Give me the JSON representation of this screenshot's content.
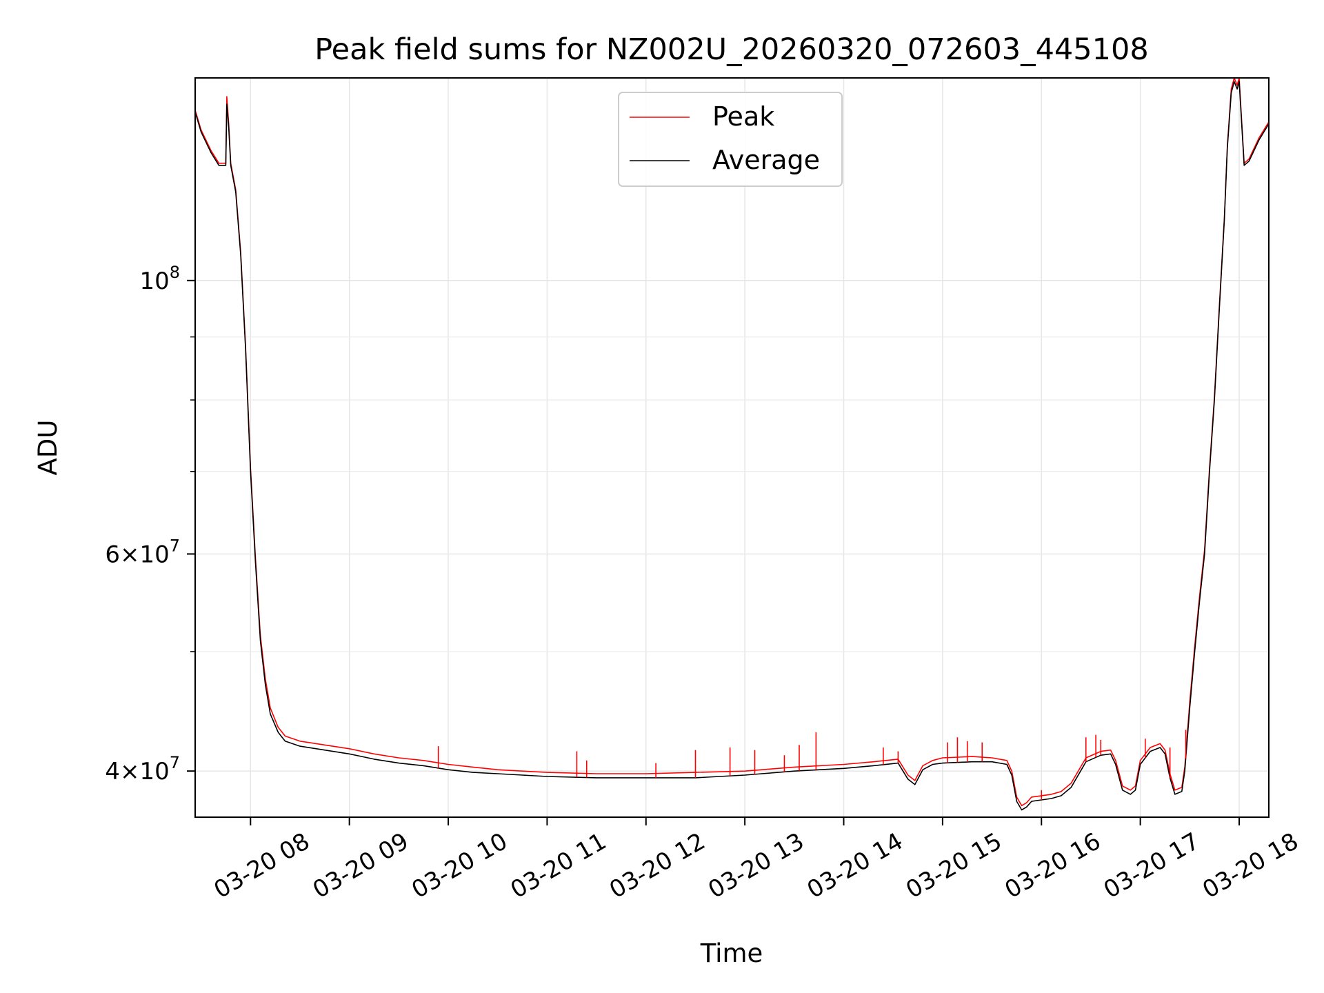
{
  "chart_data": {
    "type": "line",
    "title": "Peak field sums for NZ002U_20260320_072603_445108",
    "xlabel": "Time",
    "ylabel": "ADU",
    "yscale": "log",
    "ylim": [
      36700000,
      146000000
    ],
    "xlim_hours": [
      7.44,
      18.3
    ],
    "x_tick_labels": [
      "03-20 08",
      "03-20 09",
      "03-20 10",
      "03-20 11",
      "03-20 12",
      "03-20 13",
      "03-20 14",
      "03-20 15",
      "03-20 16",
      "03-20 17",
      "03-20 18"
    ],
    "x_tick_hours": [
      8,
      9,
      10,
      11,
      12,
      13,
      14,
      15,
      16,
      17,
      18
    ],
    "y_major_ticks": [
      {
        "value": 40000000,
        "mantissa": "4",
        "exp": "7"
      },
      {
        "value": 60000000,
        "mantissa": "6",
        "exp": "7"
      },
      {
        "value": 100000000,
        "mantissa": "",
        "exp": "8"
      }
    ],
    "y_minor_ticks": [
      50000000,
      70000000,
      80000000,
      90000000
    ],
    "grid": true,
    "legend": {
      "position": "upper-center",
      "entries": [
        {
          "label": "Peak",
          "color": "#ff0000"
        },
        {
          "label": "Average",
          "color": "#000000"
        }
      ]
    },
    "series": [
      {
        "name": "Average",
        "color": "#000000",
        "points": [
          [
            7.44,
            137000000
          ],
          [
            7.5,
            132000000
          ],
          [
            7.6,
            127000000
          ],
          [
            7.68,
            124000000
          ],
          [
            7.75,
            124000000
          ],
          [
            7.76,
            139000000
          ],
          [
            7.78,
            133000000
          ],
          [
            7.8,
            124000000
          ],
          [
            7.85,
            118000000
          ],
          [
            7.9,
            105000000
          ],
          [
            7.95,
            88000000
          ],
          [
            8.0,
            70000000
          ],
          [
            8.05,
            59000000
          ],
          [
            8.1,
            51000000
          ],
          [
            8.15,
            47000000
          ],
          [
            8.2,
            44500000
          ],
          [
            8.28,
            43000000
          ],
          [
            8.35,
            42300000
          ],
          [
            8.5,
            41900000
          ],
          [
            8.75,
            41600000
          ],
          [
            9.0,
            41300000
          ],
          [
            9.25,
            40900000
          ],
          [
            9.5,
            40600000
          ],
          [
            9.75,
            40400000
          ],
          [
            10.0,
            40100000
          ],
          [
            10.25,
            39900000
          ],
          [
            10.5,
            39800000
          ],
          [
            10.75,
            39700000
          ],
          [
            11.0,
            39600000
          ],
          [
            11.5,
            39500000
          ],
          [
            12.0,
            39500000
          ],
          [
            12.5,
            39500000
          ],
          [
            13.0,
            39700000
          ],
          [
            13.5,
            40000000
          ],
          [
            14.0,
            40200000
          ],
          [
            14.3,
            40400000
          ],
          [
            14.55,
            40600000
          ],
          [
            14.65,
            39400000
          ],
          [
            14.72,
            39000000
          ],
          [
            14.8,
            40100000
          ],
          [
            14.9,
            40500000
          ],
          [
            15.0,
            40600000
          ],
          [
            15.3,
            40700000
          ],
          [
            15.5,
            40700000
          ],
          [
            15.65,
            40500000
          ],
          [
            15.7,
            39700000
          ],
          [
            15.75,
            37800000
          ],
          [
            15.8,
            37200000
          ],
          [
            15.85,
            37400000
          ],
          [
            15.9,
            37800000
          ],
          [
            16.0,
            37900000
          ],
          [
            16.1,
            38000000
          ],
          [
            16.2,
            38200000
          ],
          [
            16.3,
            38800000
          ],
          [
            16.45,
            40700000
          ],
          [
            16.6,
            41200000
          ],
          [
            16.7,
            41300000
          ],
          [
            16.75,
            40500000
          ],
          [
            16.82,
            38600000
          ],
          [
            16.9,
            38300000
          ],
          [
            16.95,
            38600000
          ],
          [
            17.0,
            40500000
          ],
          [
            17.1,
            41500000
          ],
          [
            17.2,
            41800000
          ],
          [
            17.25,
            41300000
          ],
          [
            17.3,
            39500000
          ],
          [
            17.35,
            38300000
          ],
          [
            17.42,
            38500000
          ],
          [
            17.45,
            40000000
          ],
          [
            17.5,
            45000000
          ],
          [
            17.55,
            50000000
          ],
          [
            17.6,
            55000000
          ],
          [
            17.65,
            60000000
          ],
          [
            17.7,
            70000000
          ],
          [
            17.75,
            80000000
          ],
          [
            17.8,
            95000000
          ],
          [
            17.85,
            112000000
          ],
          [
            17.88,
            128000000
          ],
          [
            17.92,
            142000000
          ],
          [
            17.95,
            145000000
          ],
          [
            17.98,
            143000000
          ],
          [
            18.0,
            145000000
          ],
          [
            18.05,
            124000000
          ],
          [
            18.1,
            125000000
          ],
          [
            18.2,
            130000000
          ],
          [
            18.3,
            134000000
          ]
        ]
      },
      {
        "name": "Peak",
        "color": "#ff0000",
        "points": [
          [
            7.44,
            137500000
          ],
          [
            7.5,
            132500000
          ],
          [
            7.6,
            127500000
          ],
          [
            7.68,
            124500000
          ],
          [
            7.75,
            124500000
          ],
          [
            7.76,
            141000000
          ],
          [
            7.78,
            134000000
          ],
          [
            7.8,
            124500000
          ],
          [
            7.85,
            118500000
          ],
          [
            7.9,
            105500000
          ],
          [
            7.95,
            88500000
          ],
          [
            8.0,
            70500000
          ],
          [
            8.05,
            59500000
          ],
          [
            8.1,
            51500000
          ],
          [
            8.15,
            47500000
          ],
          [
            8.2,
            45000000
          ],
          [
            8.28,
            43400000
          ],
          [
            8.35,
            42700000
          ],
          [
            8.5,
            42300000
          ],
          [
            8.75,
            42000000
          ],
          [
            9.0,
            41700000
          ],
          [
            9.25,
            41300000
          ],
          [
            9.5,
            41000000
          ],
          [
            9.75,
            40800000
          ],
          [
            10.0,
            40500000
          ],
          [
            10.25,
            40300000
          ],
          [
            10.5,
            40100000
          ],
          [
            10.75,
            40000000
          ],
          [
            11.0,
            39900000
          ],
          [
            11.5,
            39800000
          ],
          [
            12.0,
            39800000
          ],
          [
            12.5,
            39900000
          ],
          [
            13.0,
            40000000
          ],
          [
            13.5,
            40300000
          ],
          [
            14.0,
            40500000
          ],
          [
            14.3,
            40700000
          ],
          [
            14.55,
            40900000
          ],
          [
            14.65,
            39700000
          ],
          [
            14.72,
            39300000
          ],
          [
            14.8,
            40400000
          ],
          [
            14.9,
            40800000
          ],
          [
            15.0,
            41000000
          ],
          [
            15.3,
            41100000
          ],
          [
            15.5,
            41000000
          ],
          [
            15.65,
            40800000
          ],
          [
            15.7,
            40000000
          ],
          [
            15.75,
            38100000
          ],
          [
            15.8,
            37500000
          ],
          [
            15.85,
            37700000
          ],
          [
            15.9,
            38100000
          ],
          [
            16.0,
            38200000
          ],
          [
            16.1,
            38300000
          ],
          [
            16.2,
            38500000
          ],
          [
            16.3,
            39100000
          ],
          [
            16.45,
            41000000
          ],
          [
            16.6,
            41500000
          ],
          [
            16.7,
            41600000
          ],
          [
            16.75,
            40800000
          ],
          [
            16.82,
            38900000
          ],
          [
            16.9,
            38600000
          ],
          [
            16.95,
            38900000
          ],
          [
            17.0,
            40800000
          ],
          [
            17.1,
            41800000
          ],
          [
            17.2,
            42100000
          ],
          [
            17.25,
            41600000
          ],
          [
            17.3,
            39800000
          ],
          [
            17.35,
            38600000
          ],
          [
            17.42,
            38800000
          ],
          [
            17.45,
            40300000
          ],
          [
            17.5,
            45500000
          ],
          [
            17.55,
            50500000
          ],
          [
            17.6,
            55500000
          ],
          [
            17.65,
            60500000
          ],
          [
            17.7,
            70500000
          ],
          [
            17.75,
            80500000
          ],
          [
            17.8,
            95500000
          ],
          [
            17.85,
            112500000
          ],
          [
            17.88,
            128500000
          ],
          [
            17.92,
            143000000
          ],
          [
            17.95,
            146000000
          ],
          [
            17.98,
            144000000
          ],
          [
            18.0,
            146000000
          ],
          [
            18.05,
            124500000
          ],
          [
            18.1,
            125500000
          ],
          [
            18.2,
            130500000
          ],
          [
            18.3,
            134500000
          ]
        ]
      }
    ],
    "peak_spikes": [
      [
        9.9,
        41900000
      ],
      [
        11.3,
        41500000
      ],
      [
        11.4,
        40800000
      ],
      [
        12.1,
        40600000
      ],
      [
        12.5,
        41600000
      ],
      [
        12.85,
        41800000
      ],
      [
        13.1,
        41600000
      ],
      [
        13.4,
        41200000
      ],
      [
        13.55,
        42000000
      ],
      [
        13.72,
        43000000
      ],
      [
        14.4,
        41800000
      ],
      [
        14.55,
        41500000
      ],
      [
        15.05,
        42200000
      ],
      [
        15.15,
        42600000
      ],
      [
        15.25,
        42300000
      ],
      [
        15.4,
        42200000
      ],
      [
        16.0,
        38600000
      ],
      [
        16.45,
        42600000
      ],
      [
        16.55,
        42800000
      ],
      [
        16.6,
        42400000
      ],
      [
        17.05,
        42500000
      ],
      [
        17.3,
        41800000
      ],
      [
        17.46,
        43200000
      ]
    ]
  }
}
